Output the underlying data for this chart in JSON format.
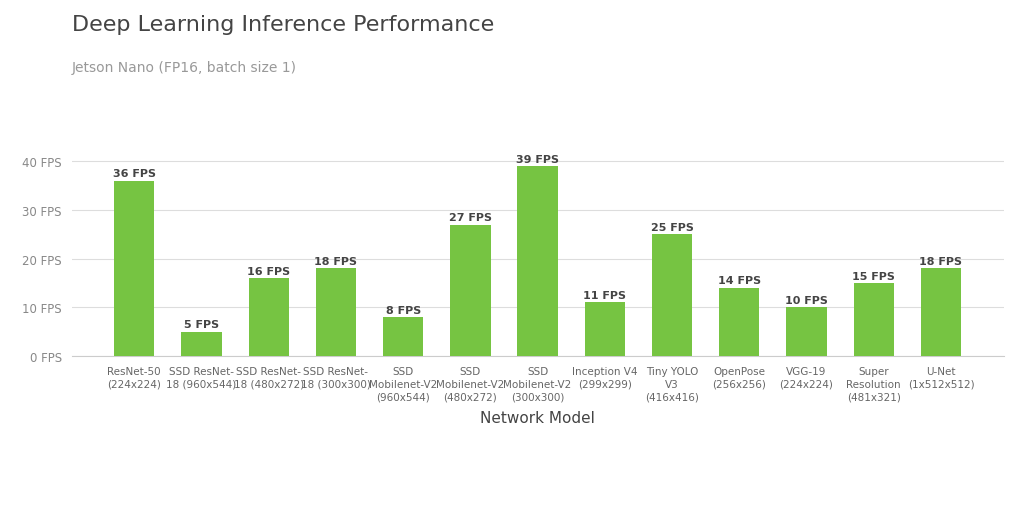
{
  "title": "Deep Learning Inference Performance",
  "subtitle": "Jetson Nano (FP16, batch size 1)",
  "xlabel": "Network Model",
  "bar_color": "#76C442",
  "background_color": "#ffffff",
  "categories": [
    "ResNet-50\n(224x224)",
    "SSD ResNet-\n18 (960x544)",
    "SSD ResNet-\n18 (480x272)",
    "SSD ResNet-\n18 (300x300)",
    "SSD\nMobilenet-V2\n(960x544)",
    "SSD\nMobilenet-V2\n(480x272)",
    "SSD\nMobilenet-V2\n(300x300)",
    "Inception V4\n(299x299)",
    "Tiny YOLO\nV3\n(416x416)",
    "OpenPose\n(256x256)",
    "VGG-19\n(224x224)",
    "Super\nResolution\n(481x321)",
    "U-Net\n(1x512x512)"
  ],
  "values": [
    36,
    5,
    16,
    18,
    8,
    27,
    39,
    11,
    25,
    14,
    10,
    15,
    18
  ],
  "yticks": [
    0,
    10,
    20,
    30,
    40
  ],
  "ytick_labels": [
    "0 FPS",
    "10 FPS",
    "20 FPS",
    "30 FPS",
    "40 FPS"
  ],
  "ylim": [
    0,
    44
  ],
  "title_fontsize": 16,
  "subtitle_fontsize": 10,
  "xlabel_fontsize": 11,
  "bar_label_fontsize": 8,
  "tick_label_fontsize": 7.5,
  "ytick_fontsize": 8.5,
  "grid_color": "#dddddd",
  "text_color": "#444444",
  "subtitle_color": "#999999",
  "ytick_color": "#888888",
  "xtick_color": "#666666"
}
